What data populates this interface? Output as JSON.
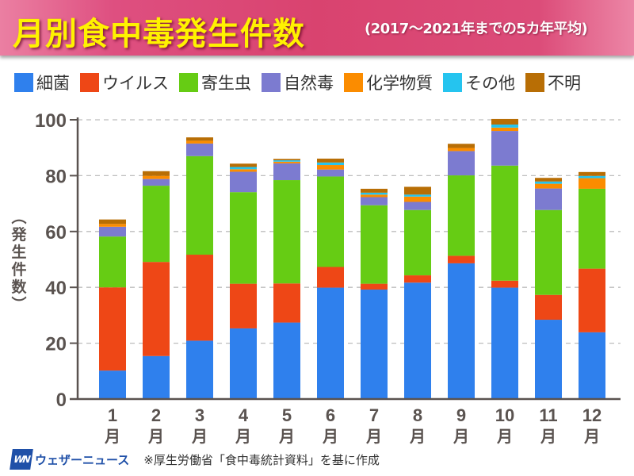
{
  "header": {
    "title": "月別食中毒発生件数",
    "subtitle": "(2017〜2021年までの5カ年平均)"
  },
  "footer": {
    "logo_mark": "WN",
    "logo_text": "ウェザーニュース",
    "source": "※厚生労働省「食中毒統計資料」を基に作成"
  },
  "chart_data": {
    "type": "bar",
    "stacked": true,
    "title": "月別食中毒発生件数",
    "subtitle": "(2017〜2021年までの5カ年平均)",
    "xlabel": "",
    "ylabel": "(発生件数)",
    "ylim": [
      0,
      100
    ],
    "yticks": [
      0,
      20,
      40,
      60,
      80,
      100
    ],
    "grid": true,
    "legend_position": "top",
    "categories": [
      "1",
      "2",
      "3",
      "4",
      "5",
      "6",
      "7",
      "8",
      "9",
      "10",
      "11",
      "12"
    ],
    "category_suffix": "月",
    "series": [
      {
        "name": "細菌",
        "color": "#2f80ed",
        "values": [
          10.2,
          15.4,
          20.9,
          25.3,
          27.4,
          39.9,
          39.2,
          41.7,
          48.6,
          39.9,
          28.4,
          23.9
        ]
      },
      {
        "name": "ウイルス",
        "color": "#ee4716",
        "values": [
          29.8,
          33.7,
          30.8,
          16.0,
          14.0,
          7.4,
          2.1,
          2.6,
          2.7,
          2.5,
          8.9,
          22.8
        ]
      },
      {
        "name": "寄生虫",
        "color": "#66cc14",
        "values": [
          18.2,
          27.3,
          35.3,
          32.8,
          37.0,
          32.4,
          28.1,
          23.4,
          28.8,
          41.2,
          30.4,
          28.6
        ]
      },
      {
        "name": "自然毒",
        "color": "#7c7bd0",
        "values": [
          3.5,
          2.4,
          4.5,
          7.3,
          6.0,
          2.5,
          2.9,
          2.9,
          8.7,
          12.4,
          7.7,
          0.0
        ]
      },
      {
        "name": "化学物質",
        "color": "#fb8c00",
        "values": [
          1.0,
          1.1,
          1.0,
          0.9,
          0.6,
          1.6,
          0.9,
          1.9,
          1.1,
          1.2,
          1.7,
          3.8
        ]
      },
      {
        "name": "その他",
        "color": "#25c4ef",
        "values": [
          0.0,
          0.0,
          0.0,
          0.8,
          0.5,
          0.9,
          0.7,
          0.7,
          0.0,
          1.1,
          0.8,
          0.8
        ]
      },
      {
        "name": "不明",
        "color": "#b86e05",
        "values": [
          1.6,
          1.7,
          1.2,
          1.2,
          0.5,
          1.4,
          1.4,
          2.8,
          1.5,
          2.0,
          1.3,
          1.4
        ]
      }
    ]
  }
}
